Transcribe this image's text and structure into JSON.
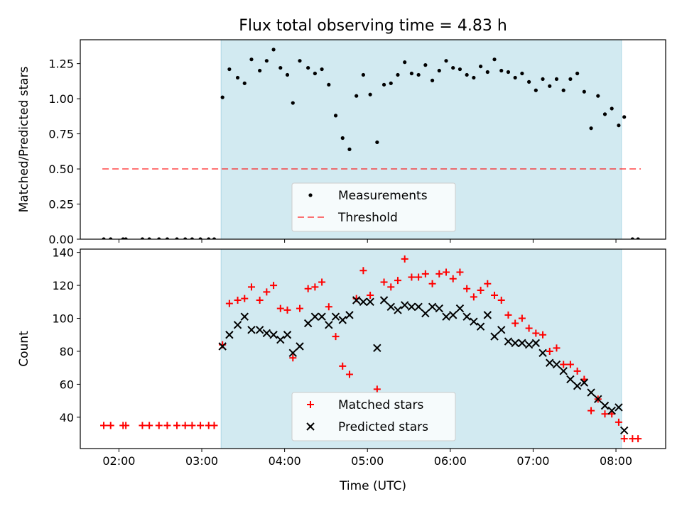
{
  "chart_data": {
    "title": "Flux total observing time = 4.83 h",
    "xlabel": "Time (UTC)",
    "x_ticks": [
      "02:00",
      "03:00",
      "04:00",
      "05:00",
      "06:00",
      "07:00",
      "08:00"
    ],
    "x_range": [
      "01:32",
      "08:36"
    ],
    "shaded_interval": [
      "03:14",
      "08:04"
    ],
    "shade_color": "#add8e6",
    "panels": [
      {
        "type": "scatter",
        "ylabel": "Matched/Predicted stars",
        "ylim": [
          0,
          1.42
        ],
        "y_ticks": [
          "0.00",
          "0.25",
          "0.50",
          "0.75",
          "1.00",
          "1.25"
        ],
        "legend_position": "bottom-center",
        "threshold": {
          "name": "Threshold",
          "value": 0.5,
          "x_range": [
            "01:48",
            "08:18"
          ],
          "color": "#ff0000"
        },
        "series": [
          {
            "name": "Measurements",
            "marker": "dot",
            "color": "#000000",
            "points": [
              [
                "01:49",
                0
              ],
              [
                "01:54",
                0
              ],
              [
                "02:03",
                0
              ],
              [
                "02:05",
                0
              ],
              [
                "02:17",
                0
              ],
              [
                "02:22",
                0
              ],
              [
                "02:29",
                0
              ],
              [
                "02:35",
                0
              ],
              [
                "02:42",
                0
              ],
              [
                "02:48",
                0
              ],
              [
                "02:53",
                0
              ],
              [
                "02:59",
                0
              ],
              [
                "03:05",
                0
              ],
              [
                "03:09",
                0
              ],
              [
                "03:15",
                1.01
              ],
              [
                "03:20",
                1.21
              ],
              [
                "03:26",
                1.15
              ],
              [
                "03:31",
                1.11
              ],
              [
                "03:36",
                1.28
              ],
              [
                "03:42",
                1.2
              ],
              [
                "03:47",
                1.27
              ],
              [
                "03:52",
                1.35
              ],
              [
                "03:57",
                1.22
              ],
              [
                "04:02",
                1.17
              ],
              [
                "04:06",
                0.97
              ],
              [
                "04:11",
                1.27
              ],
              [
                "04:17",
                1.22
              ],
              [
                "04:22",
                1.18
              ],
              [
                "04:27",
                1.21
              ],
              [
                "04:32",
                1.1
              ],
              [
                "04:37",
                0.88
              ],
              [
                "04:42",
                0.72
              ],
              [
                "04:47",
                0.64
              ],
              [
                "04:52",
                1.02
              ],
              [
                "04:57",
                1.17
              ],
              [
                "05:02",
                1.03
              ],
              [
                "05:07",
                0.69
              ],
              [
                "05:12",
                1.1
              ],
              [
                "05:17",
                1.11
              ],
              [
                "05:22",
                1.17
              ],
              [
                "05:27",
                1.26
              ],
              [
                "05:32",
                1.18
              ],
              [
                "05:37",
                1.17
              ],
              [
                "05:42",
                1.24
              ],
              [
                "05:47",
                1.13
              ],
              [
                "05:52",
                1.2
              ],
              [
                "05:57",
                1.27
              ],
              [
                "06:02",
                1.22
              ],
              [
                "06:07",
                1.21
              ],
              [
                "06:12",
                1.17
              ],
              [
                "06:17",
                1.15
              ],
              [
                "06:22",
                1.23
              ],
              [
                "06:27",
                1.19
              ],
              [
                "06:32",
                1.28
              ],
              [
                "06:37",
                1.2
              ],
              [
                "06:42",
                1.19
              ],
              [
                "06:47",
                1.15
              ],
              [
                "06:52",
                1.18
              ],
              [
                "06:57",
                1.12
              ],
              [
                "07:02",
                1.06
              ],
              [
                "07:07",
                1.14
              ],
              [
                "07:12",
                1.09
              ],
              [
                "07:17",
                1.14
              ],
              [
                "07:22",
                1.06
              ],
              [
                "07:27",
                1.14
              ],
              [
                "07:32",
                1.18
              ],
              [
                "07:37",
                1.05
              ],
              [
                "07:42",
                0.79
              ],
              [
                "07:47",
                1.02
              ],
              [
                "07:52",
                0.89
              ],
              [
                "07:57",
                0.93
              ],
              [
                "08:02",
                0.81
              ],
              [
                "08:06",
                0.87
              ],
              [
                "08:12",
                0
              ],
              [
                "08:16",
                0
              ]
            ]
          }
        ]
      },
      {
        "type": "scatter",
        "ylabel": "Count",
        "ylim": [
          21,
          142
        ],
        "y_ticks": [
          "40",
          "60",
          "80",
          "100",
          "120",
          "140"
        ],
        "legend_position": "bottom-center",
        "series": [
          {
            "name": "Matched stars",
            "marker": "plus",
            "color": "#ff0000",
            "points": [
              [
                "01:49",
                35
              ],
              [
                "01:54",
                35
              ],
              [
                "02:03",
                35
              ],
              [
                "02:05",
                35
              ],
              [
                "02:17",
                35
              ],
              [
                "02:22",
                35
              ],
              [
                "02:29",
                35
              ],
              [
                "02:35",
                35
              ],
              [
                "02:42",
                35
              ],
              [
                "02:48",
                35
              ],
              [
                "02:53",
                35
              ],
              [
                "02:59",
                35
              ],
              [
                "03:05",
                35
              ],
              [
                "03:09",
                35
              ],
              [
                "03:15",
                84
              ],
              [
                "03:20",
                109
              ],
              [
                "03:26",
                111
              ],
              [
                "03:31",
                112
              ],
              [
                "03:36",
                119
              ],
              [
                "03:42",
                111
              ],
              [
                "03:47",
                116
              ],
              [
                "03:52",
                120
              ],
              [
                "03:57",
                106
              ],
              [
                "04:02",
                105
              ],
              [
                "04:06",
                76
              ],
              [
                "04:11",
                106
              ],
              [
                "04:17",
                118
              ],
              [
                "04:22",
                119
              ],
              [
                "04:27",
                122
              ],
              [
                "04:32",
                107
              ],
              [
                "04:37",
                89
              ],
              [
                "04:42",
                71
              ],
              [
                "04:47",
                66
              ],
              [
                "04:52",
                112
              ],
              [
                "04:57",
                129
              ],
              [
                "05:02",
                114
              ],
              [
                "05:07",
                57
              ],
              [
                "05:12",
                122
              ],
              [
                "05:17",
                119
              ],
              [
                "05:22",
                123
              ],
              [
                "05:27",
                136
              ],
              [
                "05:32",
                125
              ],
              [
                "05:37",
                125
              ],
              [
                "05:42",
                127
              ],
              [
                "05:47",
                121
              ],
              [
                "05:52",
                127
              ],
              [
                "05:57",
                128
              ],
              [
                "06:02",
                124
              ],
              [
                "06:07",
                128
              ],
              [
                "06:12",
                118
              ],
              [
                "06:17",
                113
              ],
              [
                "06:22",
                117
              ],
              [
                "06:27",
                121
              ],
              [
                "06:32",
                114
              ],
              [
                "06:37",
                111
              ],
              [
                "06:42",
                102
              ],
              [
                "06:47",
                97
              ],
              [
                "06:52",
                100
              ],
              [
                "06:57",
                94
              ],
              [
                "07:02",
                91
              ],
              [
                "07:07",
                90
              ],
              [
                "07:12",
                80
              ],
              [
                "07:17",
                82
              ],
              [
                "07:22",
                72
              ],
              [
                "07:27",
                72
              ],
              [
                "07:32",
                68
              ],
              [
                "07:37",
                63
              ],
              [
                "07:42",
                44
              ],
              [
                "07:47",
                51
              ],
              [
                "07:52",
                42
              ],
              [
                "07:57",
                42
              ],
              [
                "08:02",
                37
              ],
              [
                "08:06",
                27
              ],
              [
                "08:12",
                27
              ],
              [
                "08:16",
                27
              ]
            ]
          },
          {
            "name": "Predicted stars",
            "marker": "x",
            "color": "#000000",
            "points": [
              [
                "03:15",
                83
              ],
              [
                "03:20",
                90
              ],
              [
                "03:26",
                96
              ],
              [
                "03:31",
                101
              ],
              [
                "03:36",
                93
              ],
              [
                "03:42",
                93
              ],
              [
                "03:47",
                91
              ],
              [
                "03:52",
                90
              ],
              [
                "03:57",
                87
              ],
              [
                "04:02",
                90
              ],
              [
                "04:06",
                79
              ],
              [
                "04:11",
                83
              ],
              [
                "04:17",
                97
              ],
              [
                "04:22",
                101
              ],
              [
                "04:27",
                101
              ],
              [
                "04:32",
                96
              ],
              [
                "04:37",
                101
              ],
              [
                "04:42",
                99
              ],
              [
                "04:47",
                102
              ],
              [
                "04:52",
                111
              ],
              [
                "04:57",
                110
              ],
              [
                "05:02",
                110
              ],
              [
                "05:07",
                82
              ],
              [
                "05:12",
                111
              ],
              [
                "05:17",
                107
              ],
              [
                "05:22",
                105
              ],
              [
                "05:27",
                108
              ],
              [
                "05:32",
                107
              ],
              [
                "05:37",
                107
              ],
              [
                "05:42",
                103
              ],
              [
                "05:47",
                107
              ],
              [
                "05:52",
                106
              ],
              [
                "05:57",
                101
              ],
              [
                "06:02",
                102
              ],
              [
                "06:07",
                106
              ],
              [
                "06:12",
                101
              ],
              [
                "06:17",
                98
              ],
              [
                "06:22",
                95
              ],
              [
                "06:27",
                102
              ],
              [
                "06:32",
                89
              ],
              [
                "06:37",
                93
              ],
              [
                "06:42",
                86
              ],
              [
                "06:47",
                85
              ],
              [
                "06:52",
                85
              ],
              [
                "06:57",
                84
              ],
              [
                "07:02",
                85
              ],
              [
                "07:07",
                79
              ],
              [
                "07:12",
                73
              ],
              [
                "07:17",
                72
              ],
              [
                "07:22",
                68
              ],
              [
                "07:27",
                63
              ],
              [
                "07:32",
                59
              ],
              [
                "07:37",
                61
              ],
              [
                "07:42",
                55
              ],
              [
                "07:47",
                51
              ],
              [
                "07:52",
                47
              ],
              [
                "07:57",
                44
              ],
              [
                "08:02",
                46
              ],
              [
                "08:06",
                32
              ]
            ]
          }
        ]
      }
    ]
  }
}
